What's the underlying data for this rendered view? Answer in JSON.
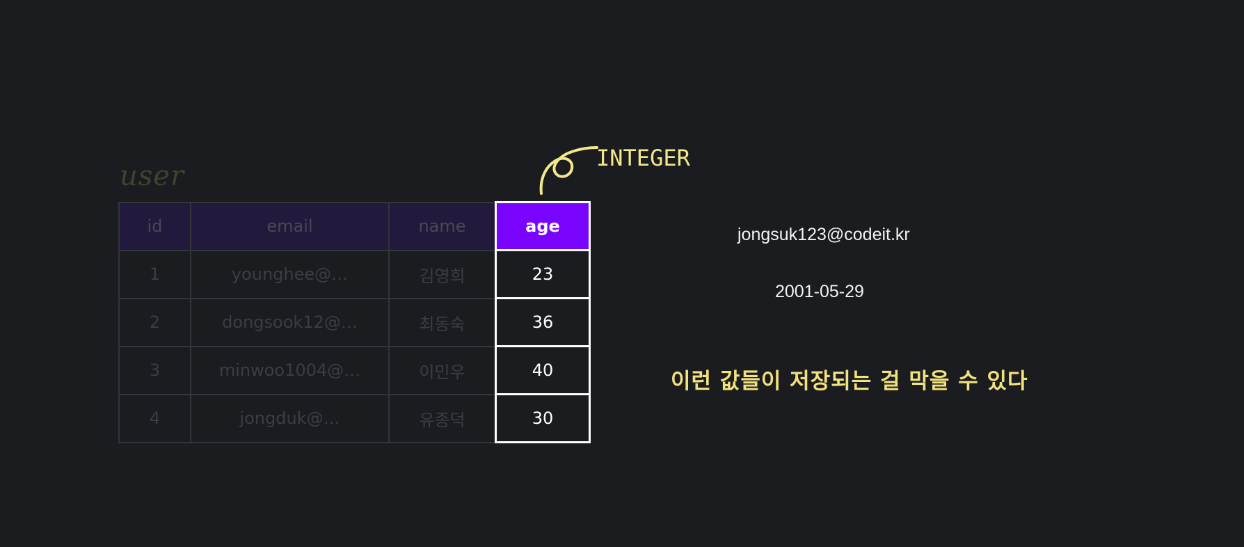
{
  "table": {
    "title": "user",
    "columns": [
      "id",
      "email",
      "name",
      "age"
    ],
    "rows": [
      {
        "id": "1",
        "email": "younghee@…",
        "name": "김영희",
        "age": "23"
      },
      {
        "id": "2",
        "email": "dongsook12@…",
        "name": "최동숙",
        "age": "36"
      },
      {
        "id": "3",
        "email": "minwoo1004@…",
        "name": "이민우",
        "age": "40"
      },
      {
        "id": "4",
        "email": "jongduk@…",
        "name": "유종덕",
        "age": "30"
      }
    ]
  },
  "annotation": {
    "type_label": "INTEGER",
    "example_email": "jongsuk123@codeit.kr",
    "example_date": "2001-05-29",
    "note": "이런 값들이 저장되는 걸 막을 수 있다"
  },
  "colors": {
    "background": "#1b1c20",
    "highlight": "#7a05ff",
    "annotation": "#f3e98a"
  }
}
